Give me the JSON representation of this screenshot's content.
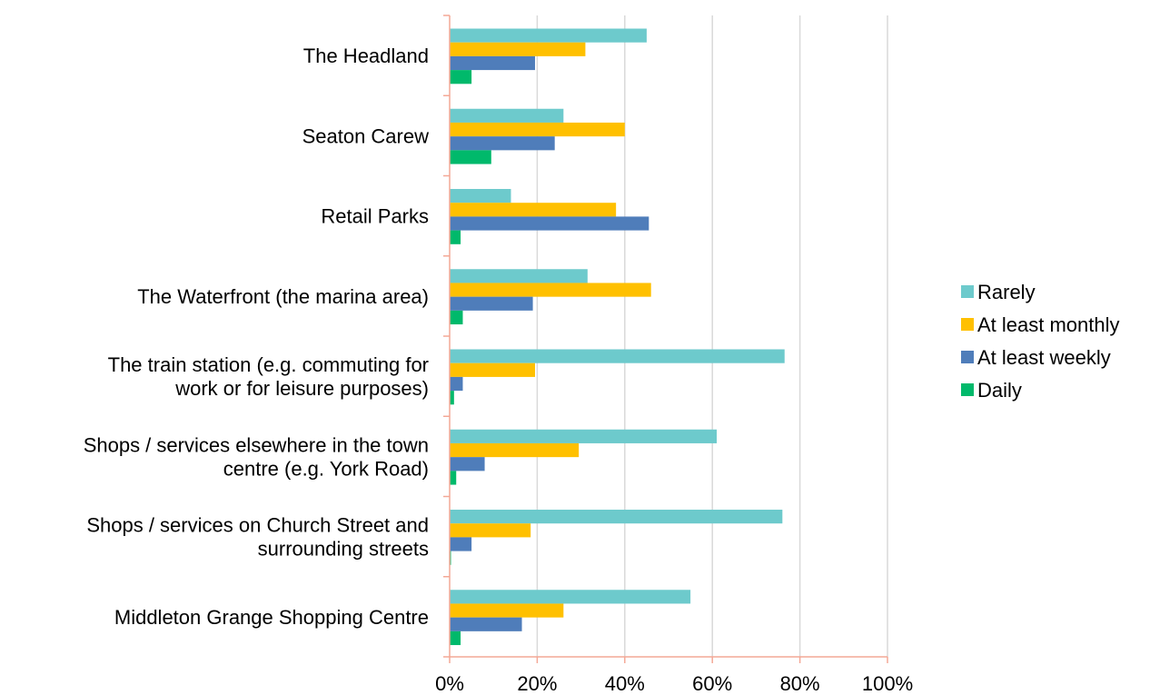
{
  "chart_data": {
    "type": "bar",
    "orientation": "horizontal",
    "categories": [
      [
        "The Headland"
      ],
      [
        "Seaton Carew"
      ],
      [
        "Retail Parks"
      ],
      [
        "The Waterfront (the marina area)"
      ],
      [
        "The train station (e.g. commuting for",
        "work or for leisure purposes)"
      ],
      [
        "Shops / services elsewhere in the town",
        "centre (e.g. York Road)"
      ],
      [
        "Shops / services on Church Street and",
        "surrounding streets"
      ],
      [
        "Middleton Grange Shopping Centre"
      ]
    ],
    "series": [
      {
        "name": "Rarely",
        "color": "#6DCACC",
        "values": [
          45,
          26,
          14,
          31.5,
          76.5,
          61,
          76,
          55
        ]
      },
      {
        "name": "At least monthly",
        "color": "#FFC000",
        "values": [
          31,
          40,
          38,
          46,
          19.5,
          29.5,
          18.5,
          26
        ]
      },
      {
        "name": "At least weekly",
        "color": "#4F7DBA",
        "values": [
          19.5,
          24,
          45.5,
          19,
          3,
          8,
          5,
          16.5
        ]
      },
      {
        "name": "Daily",
        "color": "#00B96B",
        "values": [
          5,
          9.5,
          2.5,
          3,
          1,
          1.5,
          0.3,
          2.5
        ]
      }
    ],
    "xlim": [
      0,
      100
    ],
    "xticks": [
      "0%",
      "20%",
      "40%",
      "60%",
      "80%",
      "100%"
    ],
    "grid": true,
    "legend_position": "right",
    "axis_color": "#F4A896",
    "grid_color": "#D9D9D9"
  }
}
